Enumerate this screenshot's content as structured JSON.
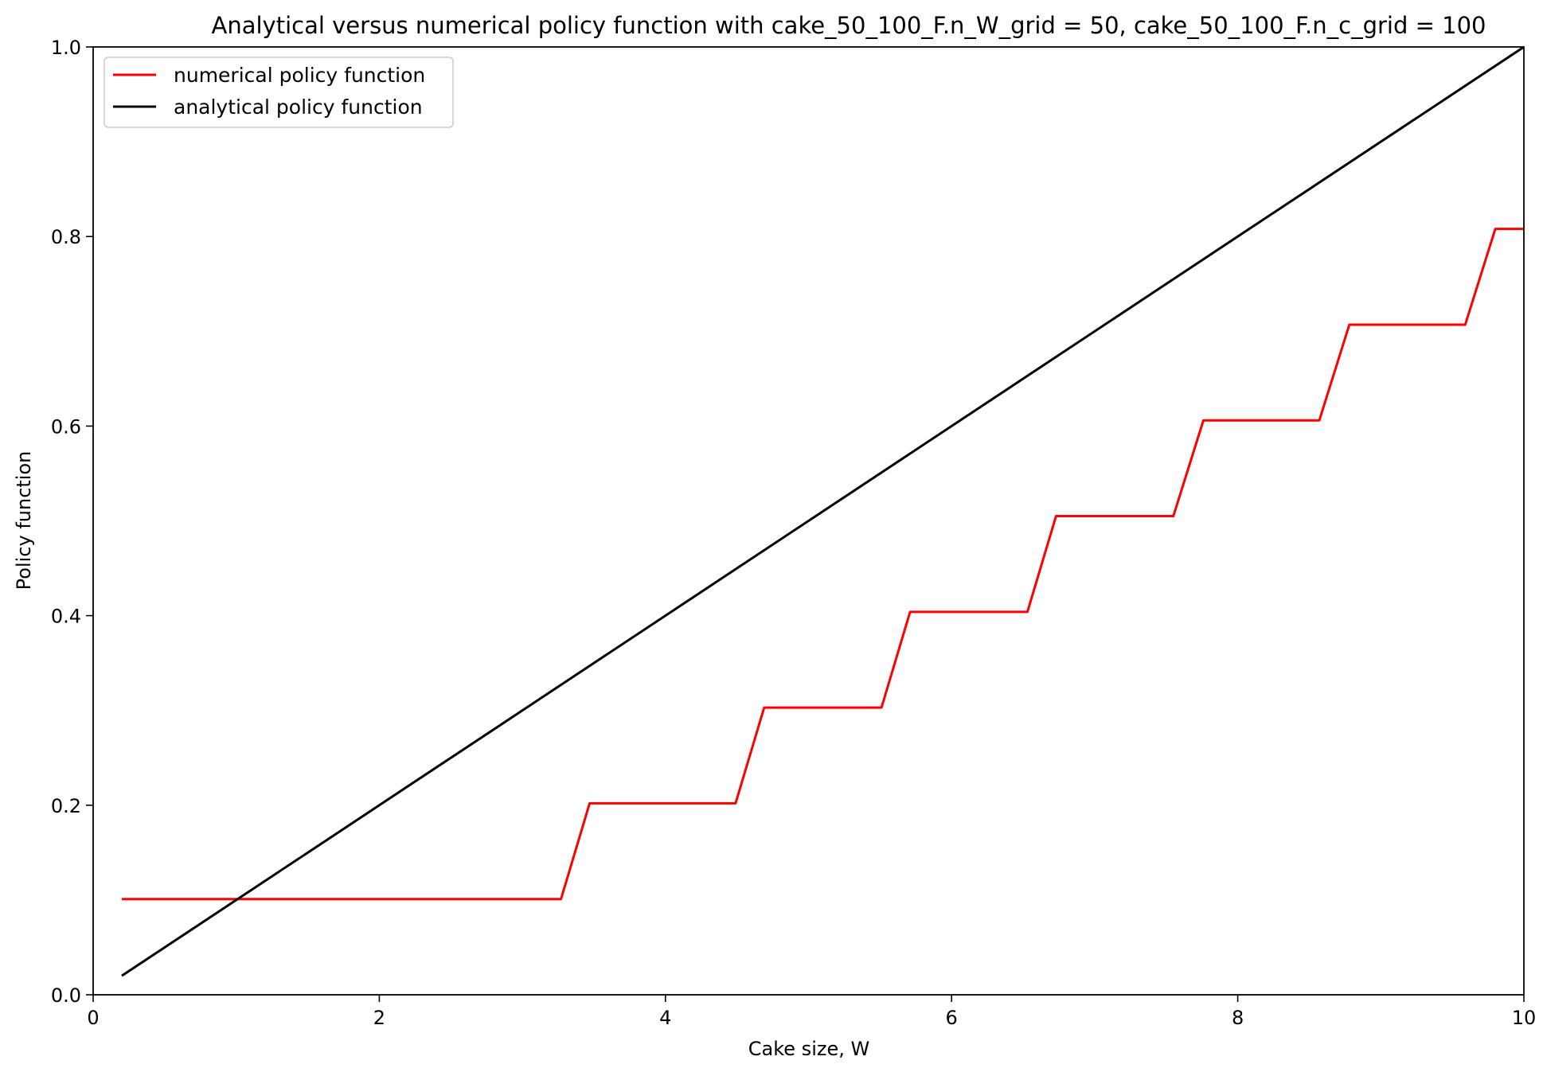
{
  "chart_data": {
    "type": "line",
    "title": "Analytical versus numerical policy function with cake_50_100_F.n_W_grid = 50, cake_50_100_F.n_c_grid = 100",
    "xlabel": "Cake size, W",
    "ylabel": "Policy function",
    "xlim": [
      0,
      10
    ],
    "ylim": [
      0,
      1.0
    ],
    "x_ticks": [
      0,
      2,
      4,
      6,
      8,
      10
    ],
    "x_tick_labels": [
      "0",
      "2",
      "4",
      "6",
      "8",
      "10"
    ],
    "y_ticks": [
      0.0,
      0.2,
      0.4,
      0.6,
      0.8,
      1.0
    ],
    "y_tick_labels": [
      "0.0",
      "0.2",
      "0.4",
      "0.6",
      "0.8",
      "1.0"
    ],
    "grid": false,
    "legend_position": "upper-left",
    "series": [
      {
        "name": "numerical policy function",
        "color": "#ff0000",
        "x": [
          0.2,
          3.27,
          3.47,
          4.49,
          4.69,
          5.51,
          5.71,
          6.53,
          6.73,
          7.55,
          7.76,
          8.57,
          8.78,
          9.59,
          9.8,
          10.0
        ],
        "y": [
          0.101,
          0.101,
          0.202,
          0.202,
          0.303,
          0.303,
          0.404,
          0.404,
          0.505,
          0.505,
          0.606,
          0.606,
          0.707,
          0.707,
          0.808,
          0.808
        ]
      },
      {
        "name": "analytical policy function",
        "color": "#000000",
        "x": [
          0.2,
          10.0
        ],
        "y": [
          0.02,
          1.0
        ]
      }
    ]
  }
}
